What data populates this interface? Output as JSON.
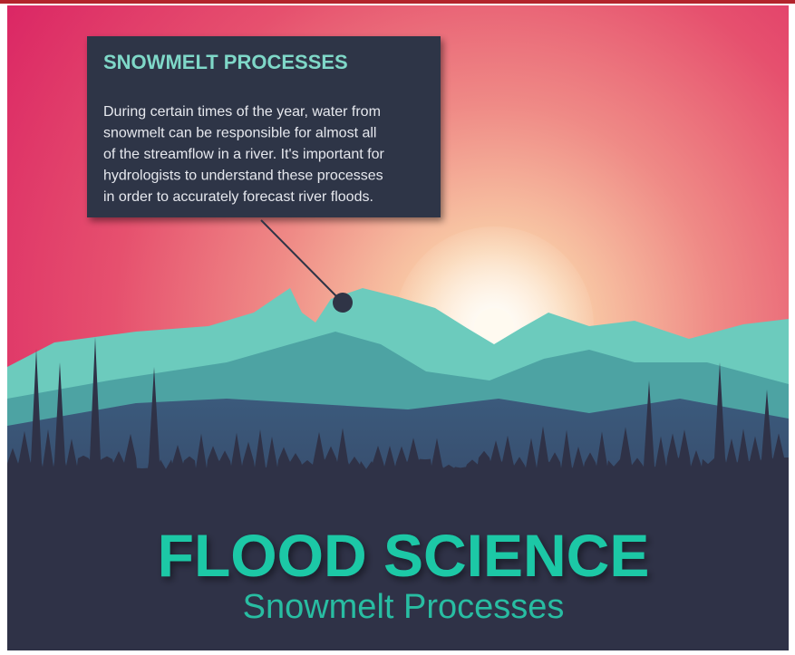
{
  "callout": {
    "title": "SNOWMELT PROCESSES",
    "body_lines": [
      "During certain times of the year, water from",
      "snowmelt can be responsible for almost all",
      "of the streamflow in a river. It's important for",
      "hydrologists to understand these processes",
      "in order to accurately forecast river floods."
    ]
  },
  "header": {
    "title": "FLOOD SCIENCE",
    "subtitle": "Snowmelt Processes"
  }
}
